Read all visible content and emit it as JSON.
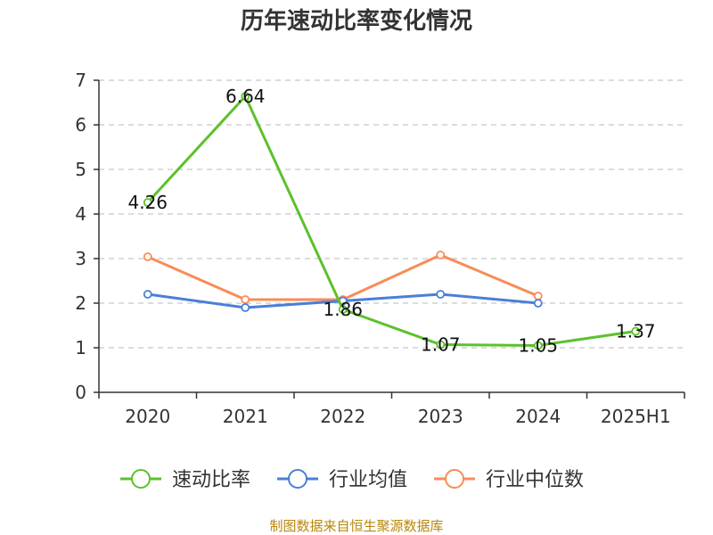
{
  "chart_data": {
    "type": "line",
    "title": "历年速动比率变化情况",
    "categories": [
      "2020",
      "2021",
      "2022",
      "2023",
      "2024",
      "2025H1"
    ],
    "ylim": [
      0,
      7
    ],
    "yticks": [
      0,
      1,
      2,
      3,
      4,
      5,
      6,
      7
    ],
    "grid": true,
    "legend_position": "bottom",
    "series": [
      {
        "name": "速动比率",
        "color": "#5cc12c",
        "values": [
          4.26,
          6.64,
          1.86,
          1.07,
          1.05,
          1.37
        ],
        "labels": [
          "4.26",
          "6.64",
          "1.86",
          "1.07",
          "1.05",
          "1.37"
        ]
      },
      {
        "name": "行业均值",
        "color": "#4a7fd9",
        "values": [
          2.2,
          1.9,
          2.05,
          2.2,
          2.0,
          null
        ]
      },
      {
        "name": "行业中位数",
        "color": "#f88c58",
        "values": [
          3.04,
          2.08,
          2.08,
          3.08,
          2.16,
          null
        ]
      }
    ],
    "source": "制图数据来自恒生聚源数据库"
  }
}
